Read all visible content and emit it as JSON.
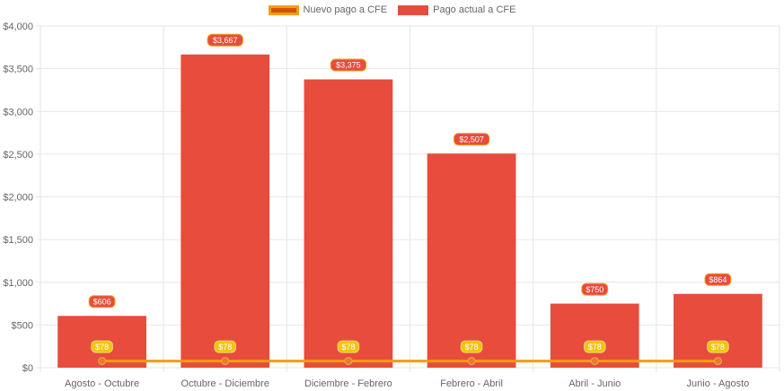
{
  "legend": [
    {
      "name": "Nuevo pago a CFE",
      "color": "#d35400",
      "border": "#f39c12"
    },
    {
      "name": "Pago actual a CFE",
      "color": "#e74c3c"
    }
  ],
  "colors": {
    "bar_fill": "#e74c3c",
    "line_stroke": "#f39c12",
    "line_point": "#e67e22",
    "bar_label_fill": "#e74c3c",
    "bar_label_border": "#f39c12",
    "line_label_fill": "#f1c40f",
    "grid": "#e6e6e6",
    "tick_text": "#666666"
  },
  "chart_data": {
    "type": "bar",
    "categories": [
      "Agosto - Octubre",
      "Octubre - Diciembre",
      "Diciembre - Febrero",
      "Febrero - Abril",
      "Abril - Junio",
      "Junio - Agosto"
    ],
    "series": [
      {
        "name": "Pago actual a CFE",
        "type": "bar",
        "values": [
          606,
          3667,
          3375,
          2507,
          750,
          864
        ],
        "labels": [
          "$606",
          "$3,667",
          "$3,375",
          "$2,507",
          "$750",
          "$864"
        ]
      },
      {
        "name": "Nuevo pago a CFE",
        "type": "line",
        "values": [
          78,
          78,
          78,
          78,
          78,
          78
        ],
        "labels": [
          "$78",
          "$78",
          "$78",
          "$78",
          "$78",
          "$78"
        ]
      }
    ],
    "ylim": [
      0,
      4000
    ],
    "yticks": [
      0,
      500,
      1000,
      1500,
      2000,
      2500,
      3000,
      3500,
      4000
    ],
    "ytick_labels": [
      "$0",
      "$500",
      "$1,000",
      "$1,500",
      "$2,000",
      "$2,500",
      "$3,000",
      "$3,500",
      "$4,000"
    ],
    "grid": true,
    "legend_position": "top"
  }
}
